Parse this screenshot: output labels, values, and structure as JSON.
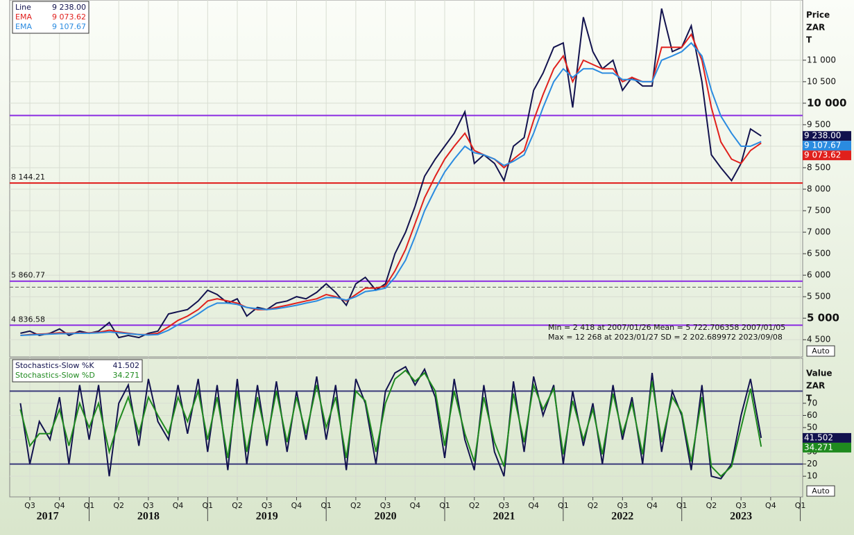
{
  "chart_data": [
    {
      "type": "line",
      "ylabel_lines": [
        "Price",
        "ZAR",
        "T"
      ],
      "auto_label": "Auto",
      "xlim": [
        2017.33,
        2024.02
      ],
      "ylim": [
        4100,
        12400
      ],
      "yticks": [
        {
          "value": 4500,
          "label": "4 500"
        },
        {
          "value": 5000,
          "label": "5 000"
        },
        {
          "value": 5500,
          "label": "5 500"
        },
        {
          "value": 6000,
          "label": "6 000"
        },
        {
          "value": 6500,
          "label": "6 500"
        },
        {
          "value": 7000,
          "label": "7 000"
        },
        {
          "value": 7500,
          "label": "7 500"
        },
        {
          "value": 8000,
          "label": "8 000"
        },
        {
          "value": 8500,
          "label": "8 500"
        },
        {
          "value": 9000,
          "label": "9 000"
        },
        {
          "value": 9500,
          "label": "9 500"
        },
        {
          "value": 10000,
          "label": "10 000"
        },
        {
          "value": 10500,
          "label": "10 500"
        },
        {
          "value": 11000,
          "label": "11 000"
        }
      ],
      "grid": true,
      "x": [
        2017.42,
        2017.5,
        2017.58,
        2017.67,
        2017.75,
        2017.83,
        2017.92,
        2018.0,
        2018.08,
        2018.17,
        2018.25,
        2018.33,
        2018.42,
        2018.5,
        2018.58,
        2018.67,
        2018.75,
        2018.83,
        2018.92,
        2019.0,
        2019.08,
        2019.17,
        2019.25,
        2019.33,
        2019.42,
        2019.5,
        2019.58,
        2019.67,
        2019.75,
        2019.83,
        2019.92,
        2020.0,
        2020.08,
        2020.17,
        2020.25,
        2020.33,
        2020.42,
        2020.5,
        2020.58,
        2020.67,
        2020.75,
        2020.83,
        2020.92,
        2021.0,
        2021.08,
        2021.17,
        2021.25,
        2021.33,
        2021.42,
        2021.5,
        2021.58,
        2021.67,
        2021.75,
        2021.83,
        2021.92,
        2022.0,
        2022.08,
        2022.17,
        2022.25,
        2022.33,
        2022.42,
        2022.5,
        2022.58,
        2022.67,
        2022.75,
        2022.83,
        2022.92,
        2023.0,
        2023.08,
        2023.17,
        2023.25,
        2023.33,
        2023.42,
        2023.5,
        2023.58,
        2023.67
      ],
      "series": [
        {
          "name": "Line",
          "color": "#12124e",
          "last_value_label": "9 238.00",
          "values": [
            4650,
            4700,
            4600,
            4650,
            4750,
            4600,
            4700,
            4650,
            4700,
            4900,
            4550,
            4600,
            4550,
            4650,
            4700,
            5100,
            5150,
            5200,
            5400,
            5650,
            5550,
            5350,
            5450,
            5050,
            5250,
            5200,
            5350,
            5400,
            5500,
            5450,
            5600,
            5800,
            5600,
            5300,
            5800,
            5950,
            5650,
            5800,
            6500,
            7000,
            7600,
            8300,
            8700,
            9000,
            9300,
            9800,
            8600,
            8800,
            8600,
            8200,
            9000,
            9200,
            10300,
            10700,
            11300,
            11400,
            9900,
            12000,
            11200,
            10800,
            11000,
            10300,
            10600,
            10400,
            10400,
            12200,
            11200,
            11300,
            11800,
            10500,
            8800,
            8500,
            8200,
            8600,
            9400,
            9238
          ]
        },
        {
          "name": "EMA",
          "color": "#e0201c",
          "last_value_label": "9 073.62",
          "values": [
            4600,
            4620,
            4630,
            4640,
            4660,
            4650,
            4660,
            4660,
            4670,
            4720,
            4680,
            4650,
            4620,
            4620,
            4650,
            4800,
            4950,
            5050,
            5200,
            5400,
            5450,
            5400,
            5350,
            5250,
            5200,
            5200,
            5250,
            5300,
            5350,
            5400,
            5450,
            5550,
            5500,
            5400,
            5550,
            5700,
            5700,
            5750,
            6100,
            6600,
            7200,
            7800,
            8300,
            8700,
            9000,
            9300,
            8900,
            8800,
            8700,
            8500,
            8700,
            8900,
            9600,
            10200,
            10800,
            11100,
            10500,
            11000,
            10900,
            10800,
            10800,
            10500,
            10600,
            10500,
            10500,
            11300,
            11300,
            11300,
            11600,
            11000,
            9900,
            9100,
            8700,
            8600,
            8900,
            9073.62
          ]
        },
        {
          "name": "EMA",
          "color": "#2a8be0",
          "last_value_label": "9 107.67",
          "values": [
            4600,
            4610,
            4620,
            4630,
            4640,
            4640,
            4650,
            4650,
            4660,
            4680,
            4660,
            4640,
            4620,
            4610,
            4620,
            4720,
            4850,
            4950,
            5100,
            5250,
            5350,
            5350,
            5320,
            5250,
            5220,
            5200,
            5220,
            5260,
            5300,
            5350,
            5400,
            5480,
            5480,
            5420,
            5500,
            5620,
            5650,
            5700,
            5950,
            6350,
            6900,
            7500,
            8000,
            8400,
            8700,
            9000,
            8850,
            8800,
            8700,
            8550,
            8650,
            8800,
            9300,
            9900,
            10500,
            10800,
            10600,
            10800,
            10800,
            10700,
            10700,
            10550,
            10550,
            10500,
            10500,
            11000,
            11100,
            11200,
            11400,
            11100,
            10300,
            9700,
            9300,
            9000,
            9000,
            9107.67
          ]
        }
      ],
      "hlines": [
        {
          "value": 9714,
          "color": "#8a2be2"
        },
        {
          "value": 8144.21,
          "label": "8 144.21",
          "color": "#e01818"
        },
        {
          "value": 5860.77,
          "label": "5 860.77",
          "color": "#8a2be2"
        },
        {
          "value": 5722.71,
          "color": "#555555",
          "dashed": true
        },
        {
          "value": 4836.58,
          "label": "4 836.58",
          "color": "#8a2be2"
        }
      ],
      "annotations": [
        "Min  = 2 418   at 2007/01/26 Mean = 5 722.706358 2007/01/05",
        "Max = 12 268 at 2023/01/27 SD     = 2 202.689972 2023/09/08"
      ]
    },
    {
      "type": "line",
      "ylabel_lines": [
        "Value",
        "ZAR",
        "T"
      ],
      "auto_label": "Auto",
      "ylim": [
        -7,
        107
      ],
      "yticks": [
        10,
        20,
        30,
        40,
        50,
        60,
        70
      ],
      "grid": true,
      "hlines": [
        {
          "value": 80,
          "color": "#3a3a7a"
        },
        {
          "value": 20,
          "color": "#3a3a7a"
        }
      ],
      "series": [
        {
          "name": "Stochastics-Slow %K",
          "color": "#12124e",
          "last_value_label": "41.502",
          "values": [
            70,
            20,
            55,
            40,
            75,
            20,
            85,
            40,
            85,
            10,
            70,
            85,
            35,
            90,
            55,
            40,
            85,
            45,
            90,
            30,
            85,
            15,
            90,
            20,
            85,
            35,
            88,
            30,
            80,
            40,
            92,
            40,
            85,
            15,
            90,
            70,
            20,
            80,
            95,
            100,
            85,
            98,
            75,
            25,
            90,
            40,
            15,
            85,
            30,
            10,
            88,
            30,
            92,
            60,
            85,
            20,
            80,
            35,
            70,
            20,
            85,
            40,
            75,
            20,
            95,
            30,
            80,
            60,
            15,
            85,
            10,
            8,
            20,
            60,
            90,
            41.502
          ]
        },
        {
          "name": "Stochastics-Slow %D",
          "color": "#1f8a1f",
          "last_value_label": "34.271",
          "values": [
            65,
            35,
            45,
            45,
            65,
            35,
            70,
            50,
            70,
            30,
            55,
            75,
            45,
            75,
            60,
            45,
            75,
            55,
            80,
            40,
            75,
            25,
            80,
            30,
            75,
            40,
            80,
            38,
            75,
            45,
            85,
            50,
            75,
            25,
            80,
            72,
            30,
            70,
            90,
            97,
            88,
            95,
            80,
            35,
            80,
            45,
            22,
            75,
            38,
            18,
            78,
            38,
            85,
            65,
            82,
            28,
            72,
            40,
            65,
            28,
            78,
            45,
            70,
            28,
            88,
            38,
            75,
            62,
            22,
            75,
            18,
            10,
            18,
            50,
            82,
            34.271
          ]
        }
      ],
      "xticks": [
        {
          "value": 2017.5,
          "label": "Q3"
        },
        {
          "value": 2017.75,
          "label": "Q4"
        },
        {
          "value": 2018.0,
          "label": "Q1"
        },
        {
          "value": 2018.25,
          "label": "Q2"
        },
        {
          "value": 2018.5,
          "label": "Q3"
        },
        {
          "value": 2018.75,
          "label": "Q4"
        },
        {
          "value": 2019.0,
          "label": "Q1"
        },
        {
          "value": 2019.25,
          "label": "Q2"
        },
        {
          "value": 2019.5,
          "label": "Q3"
        },
        {
          "value": 2019.75,
          "label": "Q4"
        },
        {
          "value": 2020.0,
          "label": "Q1"
        },
        {
          "value": 2020.25,
          "label": "Q2"
        },
        {
          "value": 2020.5,
          "label": "Q3"
        },
        {
          "value": 2020.75,
          "label": "Q4"
        },
        {
          "value": 2021.0,
          "label": "Q1"
        },
        {
          "value": 2021.25,
          "label": "Q2"
        },
        {
          "value": 2021.5,
          "label": "Q3"
        },
        {
          "value": 2021.75,
          "label": "Q4"
        },
        {
          "value": 2022.0,
          "label": "Q1"
        },
        {
          "value": 2022.25,
          "label": "Q2"
        },
        {
          "value": 2022.5,
          "label": "Q3"
        },
        {
          "value": 2022.75,
          "label": "Q4"
        },
        {
          "value": 2023.0,
          "label": "Q1"
        },
        {
          "value": 2023.25,
          "label": "Q2"
        },
        {
          "value": 2023.5,
          "label": "Q3"
        },
        {
          "value": 2023.75,
          "label": "Q4"
        },
        {
          "value": 2024.0,
          "label": "Q1"
        }
      ],
      "year_labels": [
        {
          "value": 2017.65,
          "label": "2017"
        },
        {
          "value": 2018.5,
          "label": "2018"
        },
        {
          "value": 2019.5,
          "label": "2019"
        },
        {
          "value": 2020.5,
          "label": "2020"
        },
        {
          "value": 2021.5,
          "label": "2021"
        },
        {
          "value": 2022.5,
          "label": "2022"
        },
        {
          "value": 2023.5,
          "label": "2023"
        }
      ]
    }
  ]
}
